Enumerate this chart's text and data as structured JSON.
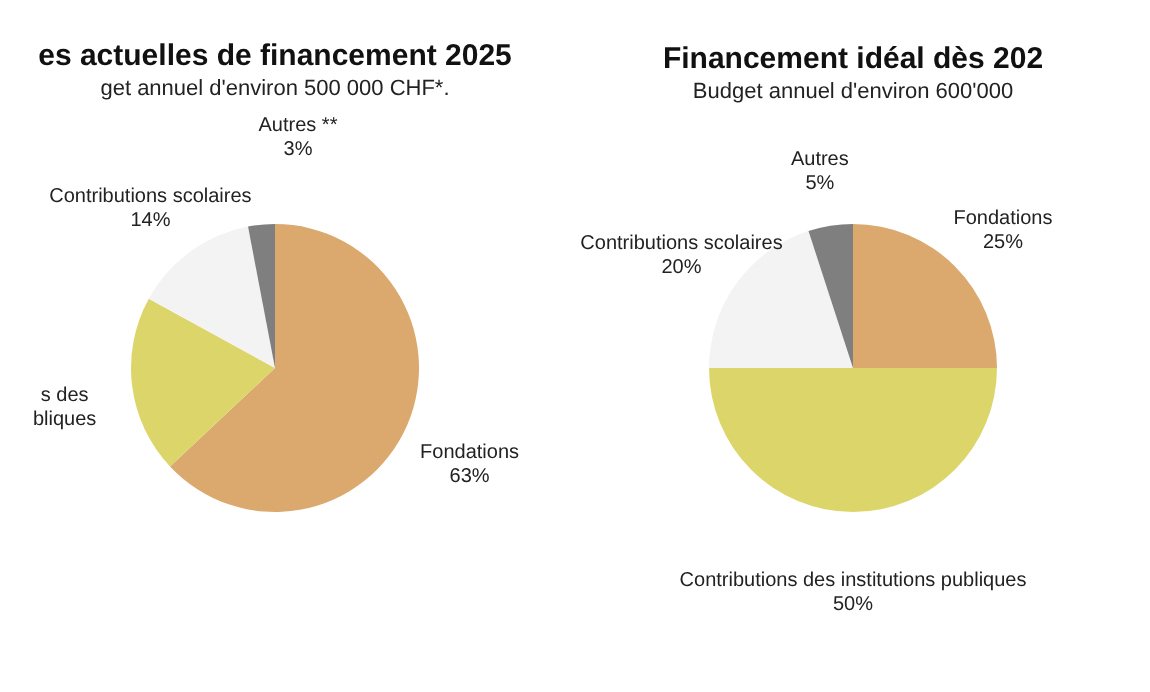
{
  "chart_data": [
    {
      "type": "pie",
      "title": "es actuelles de financement 2025",
      "subtitle": "get annuel d'environ 500 000 CHF*.",
      "categories": [
        "Fondations",
        "s des\nbliques",
        "Contributions scolaires",
        "Autres **"
      ],
      "values": [
        63,
        20,
        14,
        3
      ],
      "value_labels": [
        "63%",
        null,
        "14%",
        "3%"
      ],
      "colors": [
        "#dba96e",
        "#dcd66a",
        "#f3f3f3",
        "#7f7f7f"
      ],
      "legend": false
    },
    {
      "type": "pie",
      "title": "Financement idéal dès 202",
      "subtitle": "Budget annuel d'environ 600'000",
      "categories": [
        "Fondations",
        "Contributions des institutions publiques",
        "Contributions scolaires",
        "Autres"
      ],
      "values": [
        25,
        50,
        20,
        5
      ],
      "value_labels": [
        "25%",
        "50%",
        "20%",
        "5%"
      ],
      "colors": [
        "#dba96e",
        "#dcd66a",
        "#f3f3f3",
        "#7f7f7f"
      ],
      "legend": false
    }
  ]
}
